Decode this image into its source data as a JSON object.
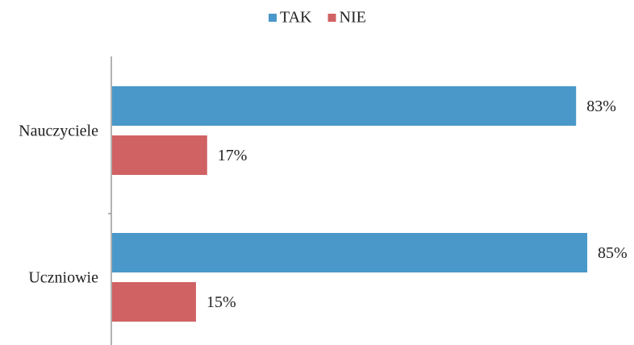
{
  "chart_data": {
    "type": "bar",
    "orientation": "horizontal",
    "categories": [
      "Nauczyciele",
      "Uczniowie"
    ],
    "series": [
      {
        "name": "TAK",
        "color": "#4a98c9",
        "values": [
          83,
          85
        ],
        "value_labels": [
          "83%",
          "85%"
        ]
      },
      {
        "name": "NIE",
        "color": "#d06264",
        "values": [
          17,
          15
        ],
        "value_labels": [
          "17%",
          "15%"
        ]
      }
    ],
    "legend": "top"
  }
}
